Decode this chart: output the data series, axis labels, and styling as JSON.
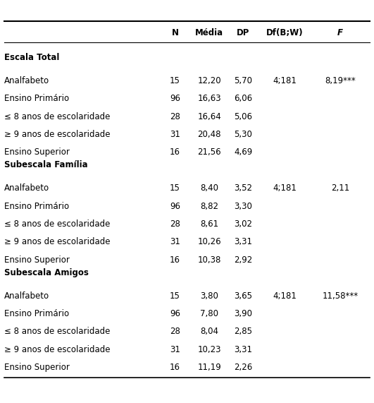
{
  "header": [
    "N",
    "Média",
    "DP",
    "Df(B;W)",
    "F"
  ],
  "sections": [
    {
      "title": "Escala Total",
      "rows": [
        {
          "label": "Analfabeto",
          "N": "15",
          "media": "12,20",
          "dp": "5,70",
          "df": "4;181",
          "f": "8,19***"
        },
        {
          "label": "Ensino Primário",
          "N": "96",
          "media": "16,63",
          "dp": "6,06",
          "df": "",
          "f": ""
        },
        {
          "label": "≤ 8 anos de escolaridade",
          "N": "28",
          "media": "16,64",
          "dp": "5,06",
          "df": "",
          "f": ""
        },
        {
          "label": "≥ 9 anos de escolaridade",
          "N": "31",
          "media": "20,48",
          "dp": "5,30",
          "df": "",
          "f": ""
        },
        {
          "label": "Ensino Superior",
          "N": "16",
          "media": "21,56",
          "dp": "4,69",
          "df": "",
          "f": ""
        }
      ]
    },
    {
      "title": "Subescala Família",
      "rows": [
        {
          "label": "Analfabeto",
          "N": "15",
          "media": "8,40",
          "dp": "3,52",
          "df": "4;181",
          "f": "2,11"
        },
        {
          "label": "Ensino Primário",
          "N": "96",
          "media": "8,82",
          "dp": "3,30",
          "df": "",
          "f": ""
        },
        {
          "label": "≤ 8 anos de escolaridade",
          "N": "28",
          "media": "8,61",
          "dp": "3,02",
          "df": "",
          "f": ""
        },
        {
          "label": "≥ 9 anos de escolaridade",
          "N": "31",
          "media": "10,26",
          "dp": "3,31",
          "df": "",
          "f": ""
        },
        {
          "label": "Ensino Superior",
          "N": "16",
          "media": "10,38",
          "dp": "2,92",
          "df": "",
          "f": ""
        }
      ]
    },
    {
      "title": "Subescala Amigos",
      "rows": [
        {
          "label": "Analfabeto",
          "N": "15",
          "media": "3,80",
          "dp": "3,65",
          "df": "4;181",
          "f": "11,58***"
        },
        {
          "label": "Ensino Primário",
          "N": "96",
          "media": "7,80",
          "dp": "3,90",
          "df": "",
          "f": ""
        },
        {
          "label": "≤ 8 anos de escolaridade",
          "N": "28",
          "media": "8,04",
          "dp": "2,85",
          "df": "",
          "f": ""
        },
        {
          "label": "≥ 9 anos de escolaridade",
          "N": "31",
          "media": "10,23",
          "dp": "3,31",
          "df": "",
          "f": ""
        },
        {
          "label": "Ensino Superior",
          "N": "16",
          "media": "11,19",
          "dp": "2,26",
          "df": "",
          "f": ""
        }
      ]
    }
  ],
  "col_x": {
    "label": 0.012,
    "N": 0.468,
    "media": 0.56,
    "dp": 0.65,
    "df": 0.762,
    "f": 0.91
  },
  "font_size": 8.5,
  "header_font_size": 8.5,
  "bg_color": "#ffffff",
  "text_color": "#000000"
}
